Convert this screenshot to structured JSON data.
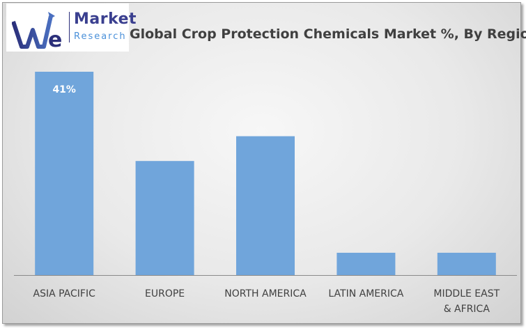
{
  "logo": {
    "word1": "Market",
    "word2": "Research"
  },
  "chart_data": {
    "type": "bar",
    "title": "Global Crop Protection Chemicals Market %, By Region",
    "categories": [
      "ASIA PACIFIC",
      "EUROPE",
      "NORTH AMERICA",
      "LATIN AMERICA",
      "MIDDLE EAST & AFRICA"
    ],
    "values": [
      41,
      23,
      28,
      4.5,
      4.5
    ],
    "data_labels": [
      "41%",
      "",
      "",
      "",
      ""
    ],
    "xlabel": "",
    "ylabel": "",
    "ylim": [
      0,
      41
    ],
    "grid": false,
    "legend": "none",
    "bar_color": "#70a5db"
  }
}
